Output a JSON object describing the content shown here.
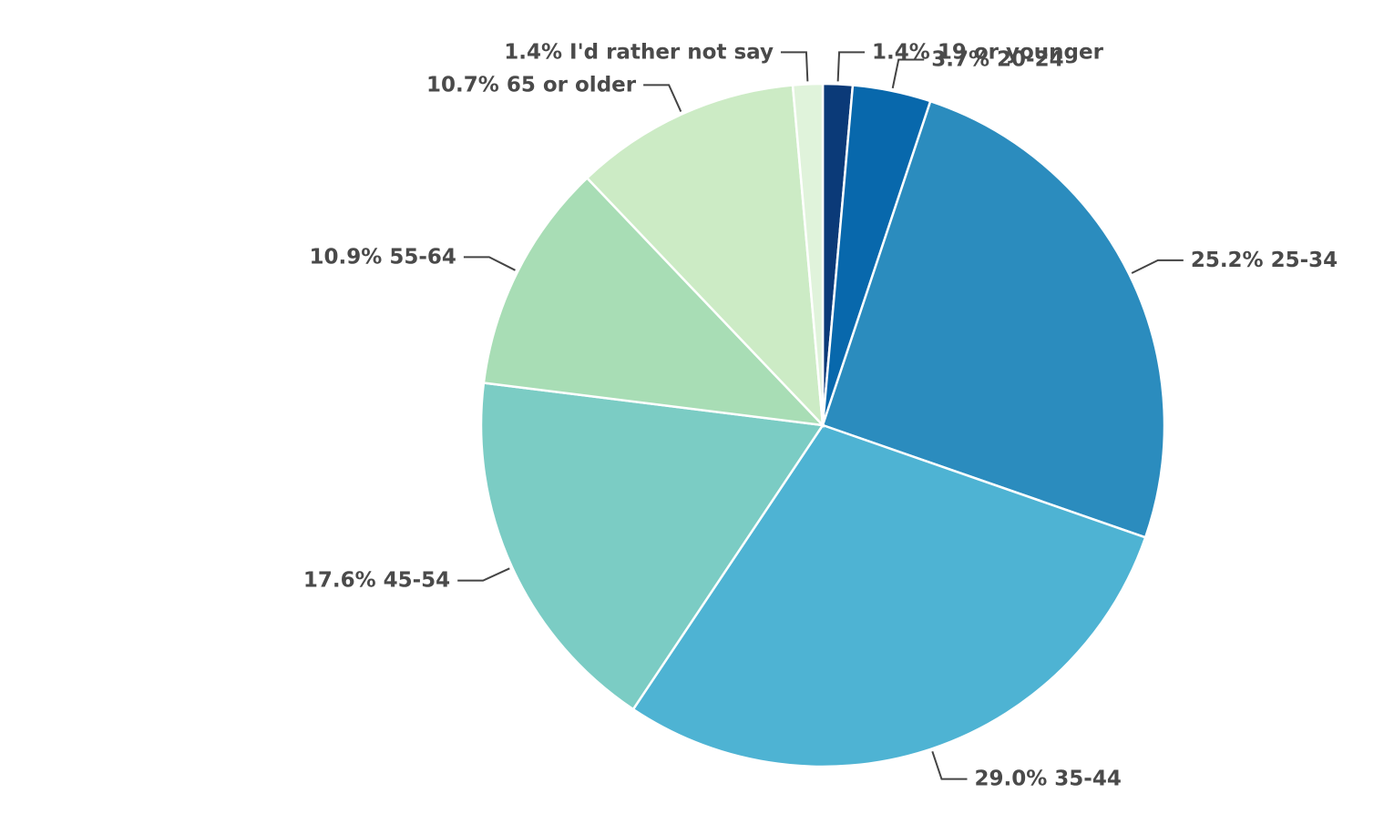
{
  "chart_data": {
    "type": "pie",
    "categories": [
      "19 or younger",
      "20-24",
      "25-34",
      "35-44",
      "45-54",
      "55-64",
      "65 or older",
      "I'd rather not say"
    ],
    "values": [
      1.4,
      3.7,
      25.2,
      29.0,
      17.6,
      10.9,
      10.7,
      1.4
    ],
    "value_labels": [
      "1.4%",
      "3.7%",
      "25.2%",
      "29.0%",
      "17.6%",
      "10.9%",
      "10.7%",
      "1.4%"
    ],
    "colors": [
      "#0b3a78",
      "#0868ac",
      "#2b8cbe",
      "#4eb3d3",
      "#7bccc4",
      "#a8ddb5",
      "#ccebc5",
      "#e0f3db"
    ]
  }
}
